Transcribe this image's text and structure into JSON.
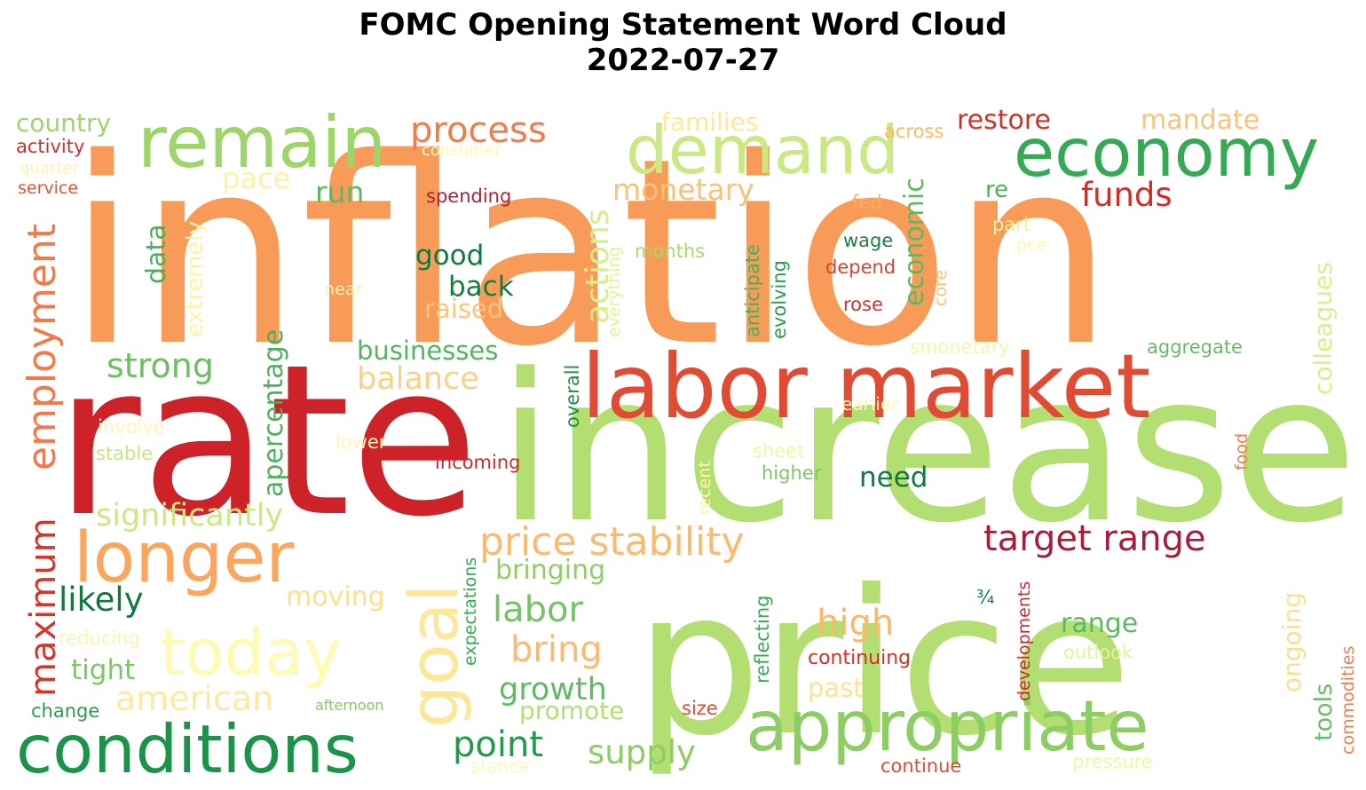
{
  "title_line1": "FOMC Opening Statement Word Cloud",
  "title_line2": "2022-07-27",
  "words": [
    {
      "text": "inflation",
      "color": "#f99b58"
    },
    {
      "text": "rate",
      "color": "#cc2228"
    },
    {
      "text": "increase",
      "color": "#b3df72"
    },
    {
      "text": "price",
      "color": "#b3df72"
    },
    {
      "text": "labor market",
      "color": "#e04b33"
    },
    {
      "text": "remain",
      "color": "#9ed568"
    },
    {
      "text": "demand",
      "color": "#cbe885"
    },
    {
      "text": "economy",
      "color": "#35a953"
    },
    {
      "text": "conditions",
      "color": "#1a9448"
    },
    {
      "text": "appropriate",
      "color": "#8ccd64"
    },
    {
      "text": "longer",
      "color": "#fca55d"
    },
    {
      "text": "today",
      "color": "#fffbb3"
    },
    {
      "text": "goal",
      "color": "#fee898"
    },
    {
      "text": "employment",
      "color": "#f57948"
    },
    {
      "text": "maximum",
      "color": "#d7352a"
    },
    {
      "text": "process",
      "color": "#f57a4a"
    },
    {
      "text": "price stability",
      "color": "#fdba6e"
    },
    {
      "text": "target range",
      "color": "#a81e3a"
    },
    {
      "text": "country",
      "color": "#9ed568"
    },
    {
      "text": "activity",
      "color": "#d02f2b"
    },
    {
      "text": "quarter",
      "color": "#fff4b0"
    },
    {
      "text": "service",
      "color": "#e75334"
    },
    {
      "text": "consumer",
      "color": "#fff7b4"
    },
    {
      "text": "pace",
      "color": "#fff0a8"
    },
    {
      "text": "run",
      "color": "#5db960"
    },
    {
      "text": "data",
      "color": "#4aaf5a"
    },
    {
      "text": "extremely",
      "color": "#fff2ac"
    },
    {
      "text": "families",
      "color": "#fee89a"
    },
    {
      "text": "monetary",
      "color": "#fdc075"
    },
    {
      "text": "actions",
      "color": "#d6ee8e"
    },
    {
      "text": "spending",
      "color": "#b2213a"
    },
    {
      "text": "good",
      "color": "#0f7a3f"
    },
    {
      "text": "back",
      "color": "#167c40"
    },
    {
      "text": "raised",
      "color": "#fdc47a"
    },
    {
      "text": "apercentage",
      "color": "#4eb05c"
    },
    {
      "text": "strong",
      "color": "#6dbf62"
    },
    {
      "text": "businesses",
      "color": "#55b45e"
    },
    {
      "text": "balance",
      "color": "#fdd183"
    },
    {
      "text": "involve",
      "color": "#fff6b2"
    },
    {
      "text": "stable",
      "color": "#c4e685"
    },
    {
      "text": "lower",
      "color": "#fff7b6"
    },
    {
      "text": "incoming",
      "color": "#ca2a30"
    },
    {
      "text": "significantly",
      "color": "#cbe885"
    },
    {
      "text": "likely",
      "color": "#0f7a3f"
    },
    {
      "text": "moving",
      "color": "#fee08b"
    },
    {
      "text": "reducing",
      "color": "#fff3ae"
    },
    {
      "text": "tight",
      "color": "#7cc864"
    },
    {
      "text": "american",
      "color": "#fee99c"
    },
    {
      "text": "change",
      "color": "#2a9d4c"
    },
    {
      "text": "afternoon",
      "color": "#82c865"
    },
    {
      "text": "point",
      "color": "#23994a"
    },
    {
      "text": "stance",
      "color": "#fff8bb"
    },
    {
      "text": "supply",
      "color": "#8ccd64"
    },
    {
      "text": "bringing",
      "color": "#8fcf66"
    },
    {
      "text": "labor",
      "color": "#74c364"
    },
    {
      "text": "bring",
      "color": "#fdba6e"
    },
    {
      "text": "growth",
      "color": "#5fba61"
    },
    {
      "text": "promote",
      "color": "#b3df72"
    },
    {
      "text": "expectations",
      "color": "#35a953"
    },
    {
      "text": "everything",
      "color": "#e4f29b"
    },
    {
      "text": "overall",
      "color": "#1f8e47"
    },
    {
      "text": "months",
      "color": "#a6d96a"
    },
    {
      "text": "anticipate",
      "color": "#4aaf5a"
    },
    {
      "text": "evolving",
      "color": "#2a9d4c"
    },
    {
      "text": "fed",
      "color": "#fdae61"
    },
    {
      "text": "wage",
      "color": "#197f42"
    },
    {
      "text": "depend",
      "color": "#de3f2e"
    },
    {
      "text": "rose",
      "color": "#d73027"
    },
    {
      "text": "economic",
      "color": "#5db960"
    },
    {
      "text": "core",
      "color": "#fdc479"
    },
    {
      "text": "near",
      "color": "#fff1ad"
    },
    {
      "text": "across",
      "color": "#fdb869"
    },
    {
      "text": "restore",
      "color": "#d03028"
    },
    {
      "text": "funds",
      "color": "#d02e27"
    },
    {
      "text": "re",
      "color": "#4eb05c"
    },
    {
      "text": "part",
      "color": "#e8f59f"
    },
    {
      "text": "pce",
      "color": "#fff5b0"
    },
    {
      "text": "mandate",
      "color": "#fdc27a"
    },
    {
      "text": "colleagues",
      "color": "#d9ef8b"
    },
    {
      "text": "smonetary",
      "color": "#f2f8a9"
    },
    {
      "text": "aggregate",
      "color": "#66bd63"
    },
    {
      "text": "earlier",
      "color": "#fff8b9"
    },
    {
      "text": "sheet",
      "color": "#eef7a7"
    },
    {
      "text": "higher",
      "color": "#7cc864"
    },
    {
      "text": "recent",
      "color": "#fff4b0"
    },
    {
      "text": "need",
      "color": "#0f7a3f"
    },
    {
      "text": "food",
      "color": "#f67c4a"
    },
    {
      "text": "high",
      "color": "#fdb768"
    },
    {
      "text": "continuing",
      "color": "#d62f27"
    },
    {
      "text": "past",
      "color": "#fee392"
    },
    {
      "text": "reflecting",
      "color": "#35a953"
    },
    {
      "text": "size",
      "color": "#e04b33"
    },
    {
      "text": "developments",
      "color": "#cc2a32"
    },
    {
      "text": "¾",
      "color": "#0f7a3f"
    },
    {
      "text": "range",
      "color": "#5db960"
    },
    {
      "text": "outlook",
      "color": "#e4f29b"
    },
    {
      "text": "ongoing",
      "color": "#fee08b"
    },
    {
      "text": "tools",
      "color": "#66bd63"
    },
    {
      "text": "commodities",
      "color": "#f57a4a"
    },
    {
      "text": "continue",
      "color": "#e04b33"
    },
    {
      "text": "pressure",
      "color": "#eef7a7"
    }
  ]
}
